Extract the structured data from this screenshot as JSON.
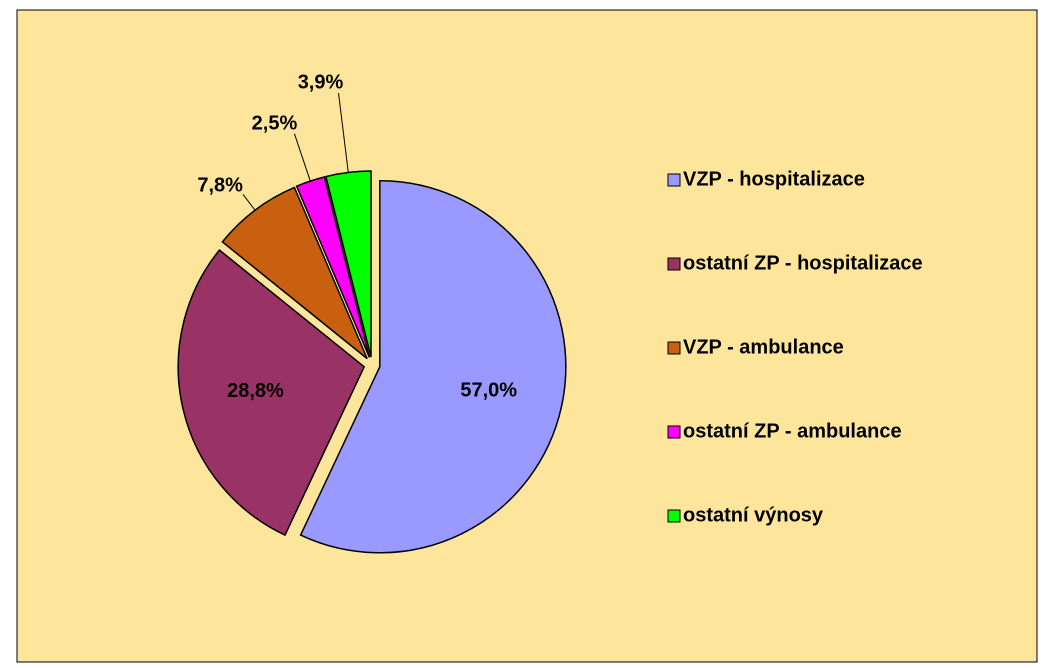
{
  "chart_data": {
    "type": "pie",
    "categories": [
      "VZP -  hospitalizace",
      "ostatní ZP - hospitalizace",
      "VZP -  ambulance",
      "ostatní ZP - ambulance",
      "ostatní výnosy"
    ],
    "values": [
      57.0,
      28.8,
      7.8,
      2.5,
      3.9
    ],
    "value_labels": [
      "57,0%",
      "28,8%",
      "7,8%",
      "2,5%",
      "3,9%"
    ],
    "colors": [
      "#9999ff",
      "#993366",
      "#c8600f",
      "#ff00ff",
      "#00ff00"
    ],
    "legend": "right"
  }
}
